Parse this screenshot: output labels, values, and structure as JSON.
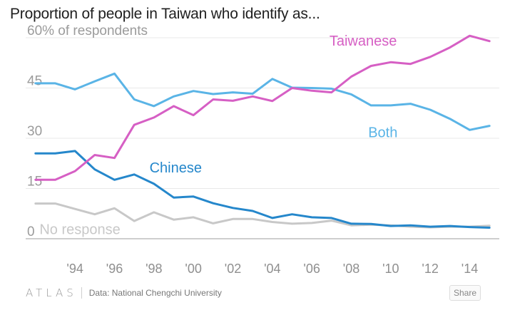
{
  "title": "Proportion of people in Taiwan who identify as...",
  "source": "Data: National Chengchi University",
  "brand": "ATLAS",
  "share_label": "Share",
  "chart_data": {
    "type": "line",
    "title": "Proportion of people in Taiwan who identify as...",
    "ylabel": "60% of respondents",
    "xlabel": "",
    "ylim": [
      0,
      60
    ],
    "xlim": [
      1991.5,
      2015.5
    ],
    "yticks": [
      0,
      15,
      30,
      45,
      60
    ],
    "ytick_labels": [
      "0",
      "15",
      "30",
      "45",
      "60% of respondents"
    ],
    "xticks": [
      1994,
      1996,
      1998,
      2000,
      2002,
      2004,
      2006,
      2008,
      2010,
      2012,
      2014
    ],
    "xtick_labels": [
      "'94",
      "'96",
      "'98",
      "'00",
      "'02",
      "'04",
      "'06",
      "'08",
      "'10",
      "'12",
      "'14"
    ],
    "grid": true,
    "x": [
      1992,
      1993,
      1994,
      1995,
      1996,
      1997,
      1998,
      1999,
      2000,
      2001,
      2002,
      2003,
      2004,
      2005,
      2006,
      2007,
      2008,
      2009,
      2010,
      2011,
      2012,
      2013,
      2014,
      2015
    ],
    "series": [
      {
        "name": "Taiwanese",
        "color": "#d65fc4",
        "label": "Taiwanese",
        "values": [
          17.6,
          17.6,
          20.2,
          25.0,
          24.1,
          34.0,
          36.2,
          39.6,
          36.9,
          41.6,
          41.2,
          42.5,
          41.1,
          45.0,
          44.2,
          43.7,
          48.4,
          51.6,
          52.7,
          52.2,
          54.3,
          57.1,
          60.6,
          59.0
        ]
      },
      {
        "name": "Both",
        "color": "#5ab4e6",
        "label": "Both",
        "values": [
          46.4,
          46.4,
          44.6,
          47.0,
          49.3,
          41.6,
          39.6,
          42.5,
          44.1,
          43.2,
          43.7,
          43.3,
          47.7,
          45.1,
          45.0,
          44.8,
          43.1,
          39.8,
          39.8,
          40.3,
          38.5,
          35.8,
          32.5,
          33.7
        ]
      },
      {
        "name": "Chinese",
        "color": "#2587cb",
        "label": "Chinese",
        "values": [
          25.5,
          25.5,
          26.2,
          20.7,
          17.6,
          19.2,
          16.4,
          12.3,
          12.6,
          10.6,
          9.2,
          8.3,
          6.2,
          7.3,
          6.4,
          6.2,
          4.5,
          4.4,
          3.8,
          4.0,
          3.6,
          3.8,
          3.5,
          3.3
        ]
      },
      {
        "name": "No response",
        "color": "#c8c8c8",
        "label": "No response",
        "values": [
          10.5,
          10.5,
          8.9,
          7.3,
          9.1,
          5.3,
          7.9,
          5.7,
          6.4,
          4.6,
          5.9,
          5.9,
          5.0,
          4.5,
          4.7,
          5.4,
          4.0,
          4.2,
          4.0,
          3.6,
          3.4,
          3.6,
          3.6,
          3.9
        ]
      }
    ]
  }
}
